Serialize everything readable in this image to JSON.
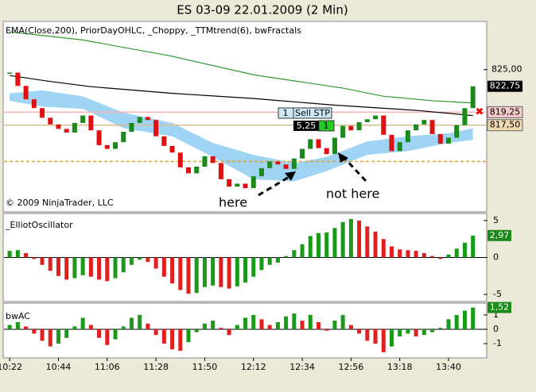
{
  "chart_data": [
    {
      "type": "candlestick",
      "title": "ES 03-09  22.01.2009 (2 Min)",
      "indicators": "EMA(Close,200), PriorDayOHLC, _Choppy, _TTMtrend(6), bwFractals",
      "copyright": "© 2009 NinjaTrader, LLC",
      "up_color": "#1a8a1a",
      "down_color": "#e01010",
      "values": [
        824.6,
        822.8,
        821.0,
        819.8,
        818.5,
        817.6,
        817.0,
        816.5,
        817.8,
        818.8,
        816.8,
        814.8,
        814.3,
        815.2,
        816.6,
        817.8,
        818.6,
        818.2,
        816.0,
        814.7,
        813.8,
        811.8,
        811.0,
        811.9,
        813.3,
        812.4,
        810.2,
        809.2,
        809.6,
        809.0,
        810.6,
        811.7,
        812.6,
        812.2,
        811.6,
        813.0,
        814.3,
        815.6,
        814.4,
        813.6,
        815.8,
        817.4,
        816.8,
        817.9,
        818.3,
        818.8,
        816.2,
        814.0,
        815.2,
        816.8,
        817.6,
        818.2,
        816.3,
        815.0,
        815.8,
        817.5,
        819.8,
        822.75
      ],
      "lines": [
        {
          "color": "#000000",
          "x": [
            0,
            5,
            10,
            20,
            30,
            40,
            50,
            57
          ],
          "values": [
            824.2,
            823.4,
            822.7,
            821.8,
            821.1,
            820.2,
            819.5,
            818.8
          ]
        },
        {
          "color": "#2e9a2e",
          "x": [
            0,
            9,
            20,
            30,
            41,
            46,
            52,
            57
          ],
          "values": [
            830.1,
            829.0,
            826.8,
            824.3,
            822.5,
            821.4,
            820.8,
            820.5
          ]
        }
      ],
      "band": {
        "color": "#9fd4f5",
        "x": [
          0,
          4,
          9,
          14,
          20,
          25,
          30,
          35,
          39,
          44,
          49,
          54,
          57
        ],
        "upper": [
          821.8,
          822.2,
          821.4,
          819.2,
          817.8,
          815.1,
          813.5,
          812.4,
          813.2,
          815.3,
          816.0,
          816.4,
          817.1
        ],
        "lower": [
          820.8,
          820.0,
          819.7,
          817.1,
          816.0,
          813.2,
          810.2,
          809.9,
          811.3,
          813.5,
          814.0,
          815.1,
          815.5
        ]
      },
      "levels": [
        {
          "value": 819.25,
          "label": "819,25",
          "color": "#f5b0b0",
          "box": "#f7c8c8"
        },
        {
          "value": 817.5,
          "label": "817,50",
          "color": "#d8c090",
          "box": "#f0d8b0"
        },
        {
          "value": 812.6,
          "color": "#e0a030",
          "dashed": true
        }
      ],
      "last_price": {
        "value": 822.75,
        "label": "822,75"
      },
      "orders": [
        "1",
        "Sell STP",
        "5,25",
        "1"
      ],
      "annotations": [
        "here",
        "not here"
      ],
      "ylim": [
        805.9,
        831.4
      ],
      "yticks": [
        {
          "value": 825,
          "label": "825,00"
        }
      ],
      "xlim": [
        -0.7,
        58.5
      ],
      "xticks": [
        {
          "value": 0,
          "label": "10:22"
        },
        {
          "value": 6,
          "label": "10:44"
        },
        {
          "value": 12,
          "label": "11:06"
        },
        {
          "value": 18,
          "label": "11:28"
        },
        {
          "value": 24,
          "label": "11:50"
        },
        {
          "value": 30,
          "label": "12:12"
        },
        {
          "value": 36,
          "label": "12:34"
        },
        {
          "value": 42,
          "label": "12:56"
        },
        {
          "value": 48,
          "label": "13:18"
        },
        {
          "value": 54,
          "label": "13:40"
        }
      ]
    },
    {
      "type": "bar",
      "title": "_ElliotOscillator",
      "up_color": "#1a9a1a",
      "down_color": "#e02020",
      "values": [
        0.9,
        1.0,
        0.6,
        -0.2,
        -1.0,
        -1.8,
        -2.5,
        -3.0,
        -2.8,
        -2.4,
        -2.6,
        -3.0,
        -3.2,
        -2.8,
        -2.0,
        -1.0,
        -0.3,
        -0.6,
        -1.5,
        -2.6,
        -3.5,
        -4.4,
        -4.9,
        -4.8,
        -4.0,
        -3.8,
        -4.0,
        -4.2,
        -3.9,
        -3.4,
        -2.6,
        -1.7,
        -1.0,
        -0.7,
        0.2,
        1.0,
        1.8,
        2.9,
        3.3,
        3.4,
        4.0,
        4.8,
        5.2,
        5.0,
        4.2,
        3.5,
        2.5,
        1.5,
        1.1,
        1.0,
        0.9,
        0.6,
        0.2,
        -0.2,
        0.4,
        1.2,
        2.0,
        2.97
      ],
      "last_value": {
        "value": 2.97,
        "label": "2,97"
      },
      "ylim": [
        -5.85,
        5.85
      ],
      "yticks": [
        5,
        0,
        -5
      ]
    },
    {
      "type": "bar",
      "title": "bwAC",
      "up_color": "#1a9a1a",
      "down_color": "#e02020",
      "values": [
        0.3,
        0.5,
        0.2,
        -0.3,
        -0.8,
        -1.2,
        -1.0,
        -0.6,
        0.2,
        0.8,
        0.3,
        -0.6,
        -1.1,
        -0.7,
        0.2,
        0.8,
        1.0,
        0.4,
        -0.4,
        -1.0,
        -1.4,
        -1.5,
        -0.9,
        -0.2,
        0.4,
        0.6,
        0.1,
        -0.4,
        0.3,
        0.8,
        1.0,
        0.7,
        0.3,
        0.5,
        0.9,
        1.1,
        0.6,
        1.0,
        0.5,
        -0.1,
        0.6,
        1.0,
        0.3,
        -0.3,
        -0.8,
        -1.0,
        -1.6,
        -1.2,
        -0.5,
        -0.3,
        -0.5,
        -0.4,
        -0.2,
        0.1,
        0.7,
        1.0,
        1.3,
        1.52
      ],
      "last_value": {
        "value": 1.52,
        "label": "1,52"
      },
      "ylim": [
        -1.94,
        1.77
      ],
      "yticks": [
        1,
        0,
        -1
      ]
    }
  ]
}
